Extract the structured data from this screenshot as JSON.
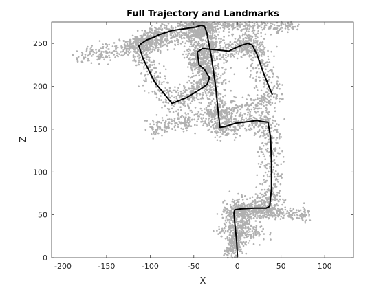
{
  "chart_data": {
    "type": "scatter",
    "title": "Full Trajectory and Landmarks",
    "xlabel": "X",
    "ylabel": "Z",
    "xlim": [
      -213,
      133
    ],
    "ylim": [
      0,
      275
    ],
    "xticks": [
      -200,
      -150,
      -100,
      -50,
      0,
      50,
      100
    ],
    "yticks": [
      0,
      50,
      100,
      150,
      200,
      250
    ],
    "grid": false,
    "legend": "none",
    "colors": {
      "landmarks": "#b0b0b0",
      "trajectory": "#000000",
      "axes": "#262626"
    },
    "series": [
      {
        "kind": "points",
        "x": [],
        "y": []
      },
      {
        "kind": "line",
        "x": [
          0,
          -1,
          -3,
          -4,
          -3,
          4,
          20,
          33,
          37,
          39,
          39,
          38,
          35,
          22,
          -2,
          -14,
          -20,
          -22,
          -25,
          -30,
          -35,
          -37,
          -38,
          -42,
          -48,
          -55,
          -75,
          -90,
          -96,
          -104,
          -110,
          -113,
          -108,
          -95,
          -75,
          -58,
          -45,
          -35,
          -32,
          -38,
          -44,
          -45,
          -46,
          -40,
          -30,
          -10,
          5,
          12,
          17,
          22,
          30,
          40
        ],
        "y": [
          1,
          20,
          40,
          52,
          56,
          57,
          58,
          58,
          60,
          80,
          110,
          140,
          158,
          160,
          157,
          153,
          152,
          170,
          200,
          235,
          262,
          268,
          270,
          271,
          269,
          268,
          265,
          260,
          257,
          254,
          250,
          247,
          232,
          205,
          180,
          187,
          195,
          202,
          210,
          220,
          225,
          232,
          240,
          244,
          243,
          241,
          248,
          250,
          248,
          238,
          215,
          190
        ]
      }
    ]
  }
}
